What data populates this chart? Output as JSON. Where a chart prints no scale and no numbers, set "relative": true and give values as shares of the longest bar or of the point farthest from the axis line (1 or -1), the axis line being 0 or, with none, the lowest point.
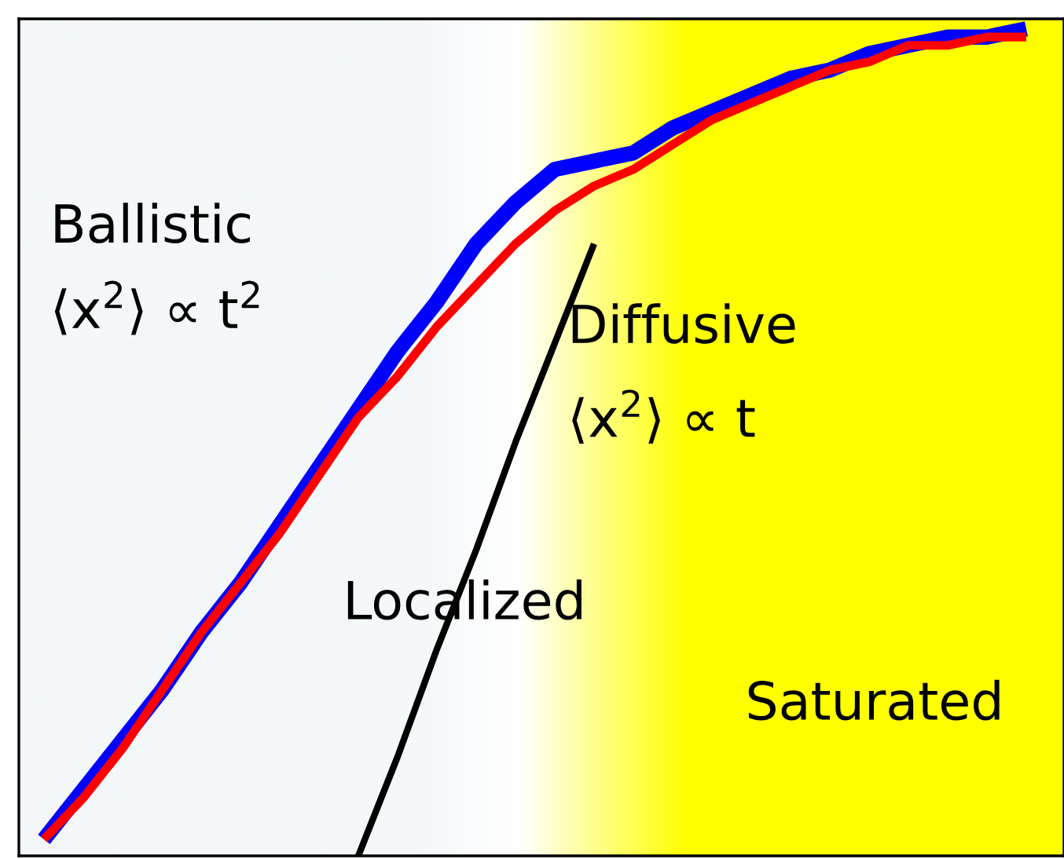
{
  "chart_data": {
    "type": "line",
    "relative": true,
    "categories": [
      null,
      null,
      null,
      null,
      null,
      null,
      null,
      null,
      null,
      null,
      null,
      null,
      null,
      null,
      null,
      null,
      null,
      null,
      null,
      null,
      null,
      null,
      null,
      null,
      null,
      null
    ],
    "series": [
      {
        "color": "#0000ff",
        "values": [
          0.02,
          0.08,
          0.14,
          0.2,
          0.27,
          0.33,
          0.4,
          0.47,
          0.54,
          0.61,
          0.67,
          0.74,
          0.79,
          0.83,
          0.84,
          0.85,
          0.88,
          0.9,
          0.92,
          0.94,
          0.95,
          0.97,
          0.98,
          0.99,
          0.99,
          1.0
        ]
      },
      {
        "color": "#ff0000",
        "values": [
          0.02,
          0.07,
          0.13,
          0.2,
          0.27,
          0.33,
          0.39,
          0.46,
          0.53,
          0.58,
          0.64,
          0.69,
          0.74,
          0.78,
          0.81,
          0.83,
          0.86,
          0.89,
          0.91,
          0.93,
          0.95,
          0.96,
          0.98,
          0.98,
          0.99,
          0.99
        ]
      },
      {
        "color": "#000000",
        "values": [
          null,
          null,
          null,
          null,
          null,
          null,
          null,
          null,
          0.0,
          0.12,
          0.25,
          0.37,
          0.5,
          0.62,
          0.74,
          null,
          null,
          null,
          null,
          null,
          null,
          null,
          null,
          null,
          null,
          null
        ]
      }
    ],
    "annotations": [
      "Ballistic",
      "⟨x$^{2}$⟩ ∝ t$^{2}$",
      "Diffusive",
      "⟨x$^{2}$⟩ ∝ t",
      "Localized",
      "Saturated"
    ],
    "grid": false,
    "marker": "none",
    "line_style": "solid"
  }
}
